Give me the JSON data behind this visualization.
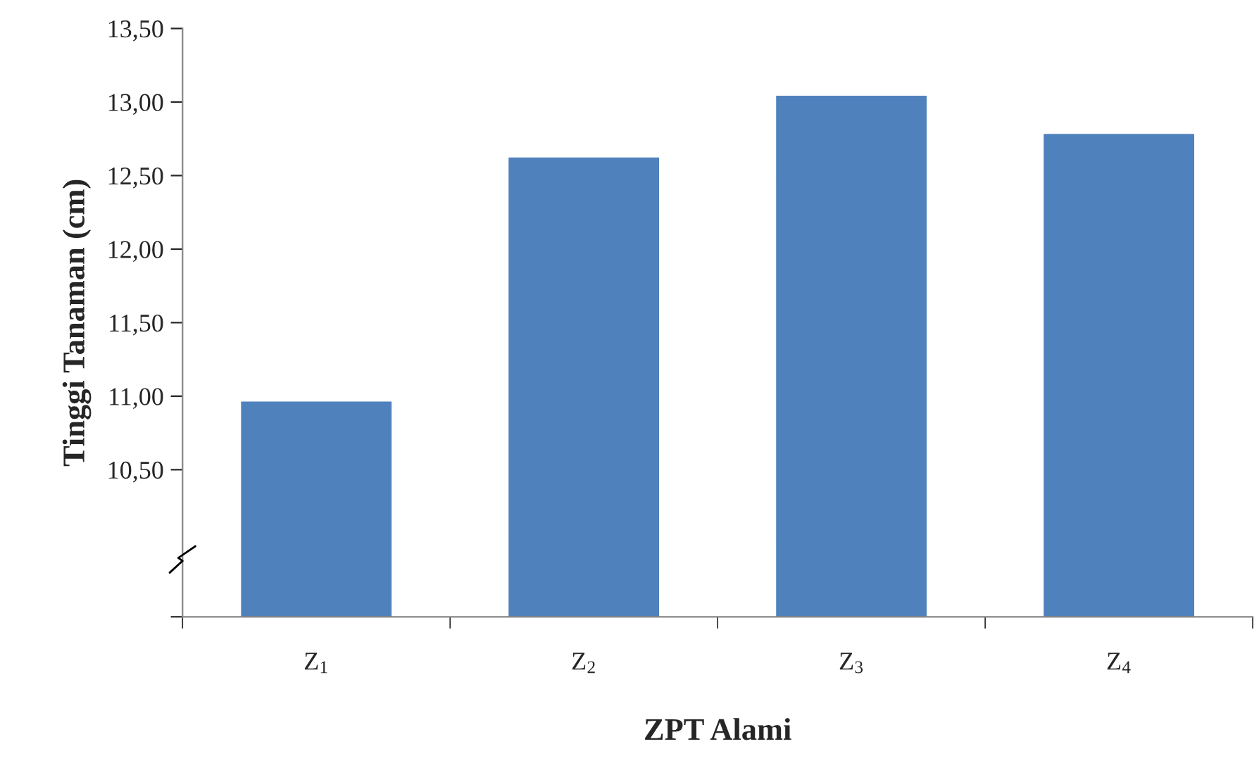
{
  "chart_data": {
    "type": "bar",
    "xlabel": "ZPT Alami",
    "ylabel": "Tinggi Tanaman (cm)",
    "categories": [
      "Z$_{1}$",
      "Z$_{2}$",
      "Z$_{3}$",
      "Z$_{4}$"
    ],
    "values": [
      10.97,
      12.63,
      13.05,
      12.79
    ],
    "color": "#4f81bd",
    "ylim": [
      9.5,
      13.5
    ],
    "yticks": [
      {
        "value": 9.5,
        "label": null
      },
      {
        "value": 10.5,
        "label": "10,50"
      },
      {
        "value": 11.0,
        "label": "11,00"
      },
      {
        "value": 11.5,
        "label": "11,50"
      },
      {
        "value": 12.0,
        "label": "12,00"
      },
      {
        "value": 12.5,
        "label": "12,50"
      },
      {
        "value": 13.0,
        "label": "13,00"
      },
      {
        "value": 13.5,
        "label": "13,50"
      }
    ],
    "grid": false,
    "legend": false
  }
}
